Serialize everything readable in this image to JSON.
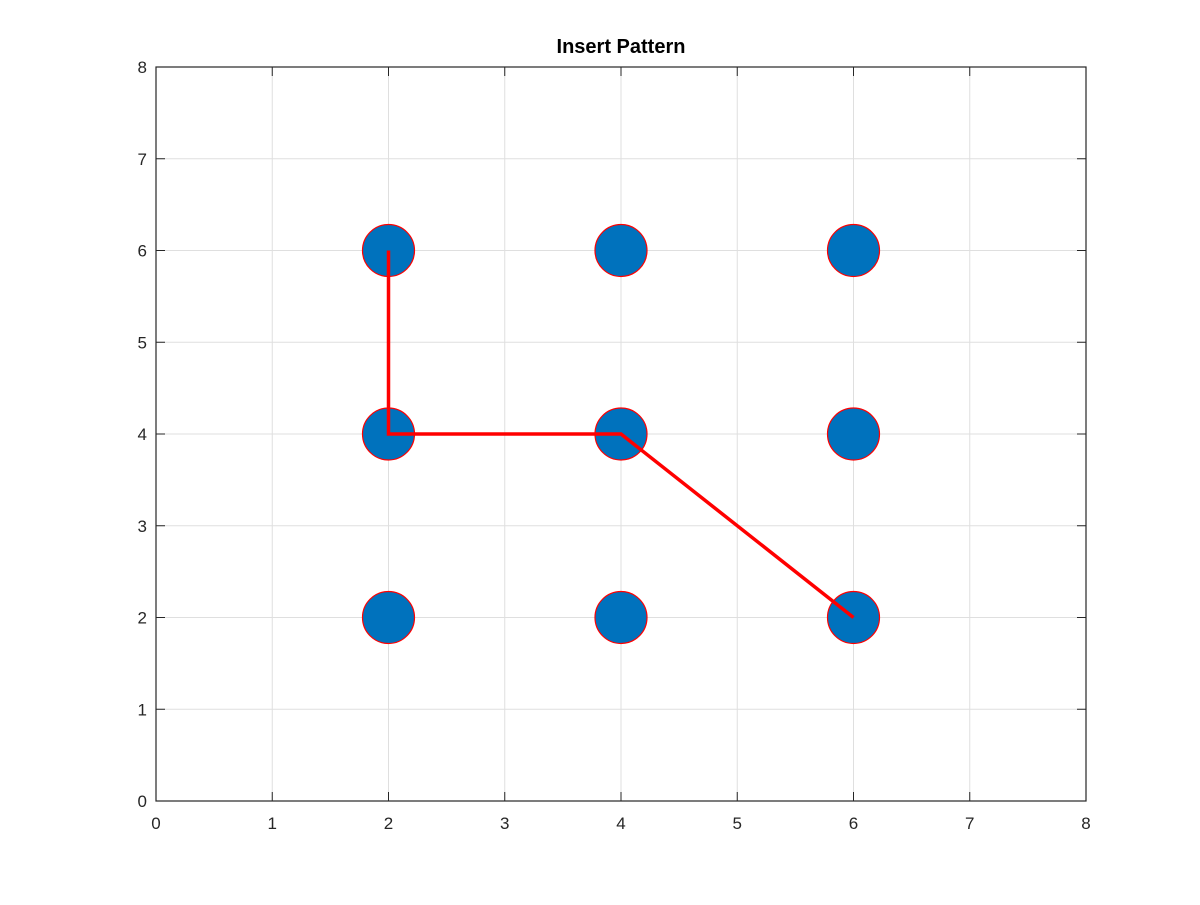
{
  "chart_data": {
    "type": "scatter",
    "title": "Insert Pattern",
    "xlabel": "",
    "ylabel": "",
    "xlim": [
      0,
      8
    ],
    "ylim": [
      0,
      8
    ],
    "xticks": [
      0,
      1,
      2,
      3,
      4,
      5,
      6,
      7,
      8
    ],
    "yticks": [
      0,
      1,
      2,
      3,
      4,
      5,
      6,
      7,
      8
    ],
    "xtick_labels": [
      "0",
      "1",
      "2",
      "3",
      "4",
      "5",
      "6",
      "7",
      "8"
    ],
    "ytick_labels": [
      "0",
      "1",
      "2",
      "3",
      "4",
      "5",
      "6",
      "7",
      "8"
    ],
    "grid": true,
    "legend": "none",
    "points": [
      {
        "x": 2,
        "y": 2
      },
      {
        "x": 4,
        "y": 2
      },
      {
        "x": 6,
        "y": 2
      },
      {
        "x": 2,
        "y": 4
      },
      {
        "x": 4,
        "y": 4
      },
      {
        "x": 6,
        "y": 4
      },
      {
        "x": 2,
        "y": 6
      },
      {
        "x": 4,
        "y": 6
      },
      {
        "x": 6,
        "y": 6
      }
    ],
    "path": [
      {
        "x": 2,
        "y": 6
      },
      {
        "x": 2,
        "y": 4
      },
      {
        "x": 4,
        "y": 4
      },
      {
        "x": 6,
        "y": 2
      }
    ],
    "colors": {
      "marker_fill": "#0072BD",
      "marker_edge": "#FF0000",
      "path_line": "#FF0000",
      "grid": "#DFDFDF",
      "axes": "#262626"
    }
  }
}
